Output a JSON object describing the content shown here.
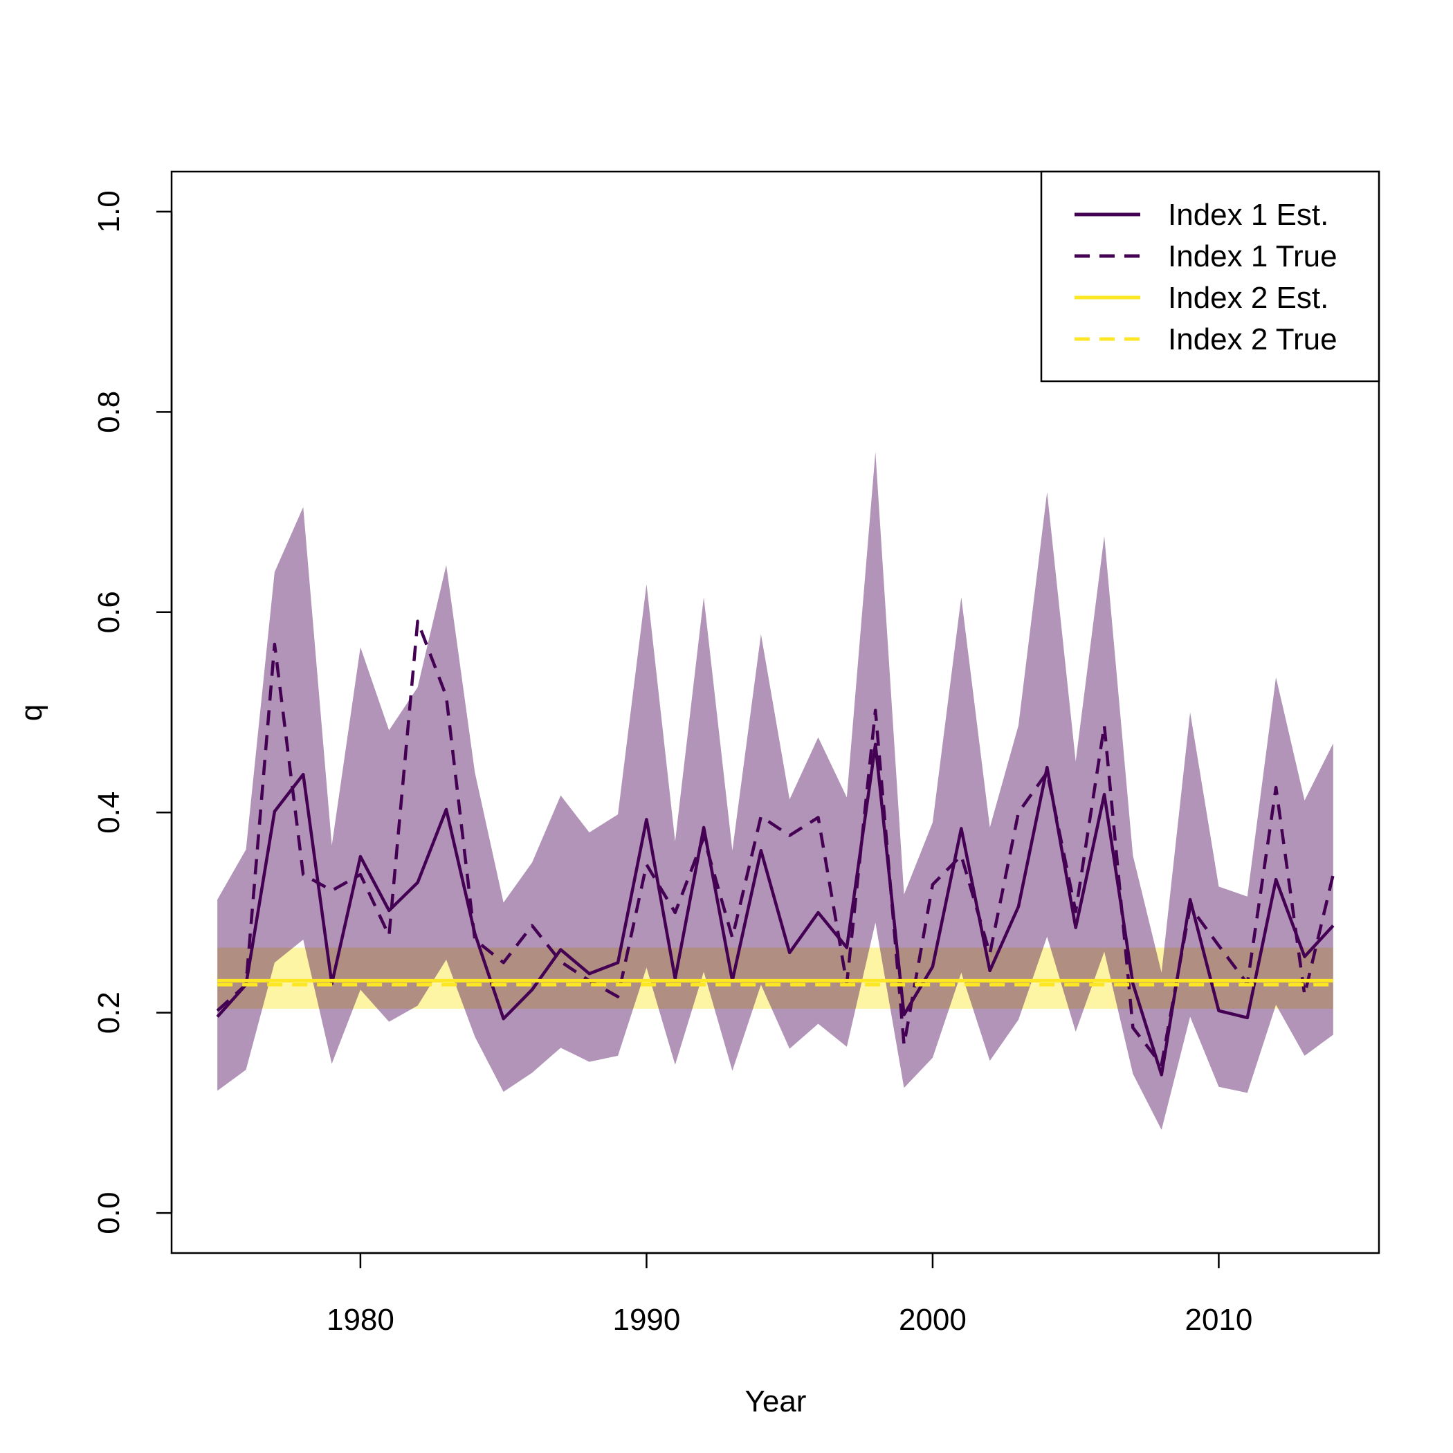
{
  "chart_data": {
    "type": "line",
    "xlabel": "Year",
    "ylabel": "q",
    "xlim": [
      1973.4,
      2015.6
    ],
    "ylim": [
      -0.04,
      1.04
    ],
    "x_ticks": [
      1980,
      1990,
      2000,
      2010
    ],
    "x_tick_labels": [
      "1980",
      "1990",
      "2000",
      "2010"
    ],
    "y_ticks": [
      0.0,
      0.2,
      0.4,
      0.6,
      0.8,
      1.0
    ],
    "y_tick_labels": [
      "0.0",
      "0.2",
      "0.4",
      "0.6",
      "0.8",
      "1.0"
    ],
    "legend_position": "top-right",
    "x": [
      1975,
      1976,
      1977,
      1978,
      1979,
      1980,
      1981,
      1982,
      1983,
      1984,
      1985,
      1986,
      1987,
      1988,
      1989,
      1990,
      1991,
      1992,
      1993,
      1994,
      1995,
      1996,
      1997,
      1998,
      1999,
      2000,
      2001,
      2002,
      2003,
      2004,
      2005,
      2006,
      2007,
      2008,
      2009,
      2010,
      2011,
      2012,
      2013,
      2014
    ],
    "series": [
      {
        "name": "Index 1 Est.",
        "color": "#440154",
        "dash": "solid",
        "values": [
          0.196,
          0.228,
          0.401,
          0.438,
          0.229,
          0.356,
          0.302,
          0.33,
          0.403,
          0.279,
          0.194,
          0.223,
          0.263,
          0.239,
          0.25,
          0.393,
          0.234,
          0.385,
          0.232,
          0.362,
          0.26,
          0.3,
          0.265,
          0.468,
          0.198,
          0.246,
          0.384,
          0.242,
          0.306,
          0.445,
          0.285,
          0.418,
          0.229,
          0.138,
          0.313,
          0.202,
          0.195,
          0.333,
          0.256,
          0.287
        ],
        "band_lower": [
          0.122,
          0.143,
          0.25,
          0.273,
          0.149,
          0.223,
          0.191,
          0.207,
          0.253,
          0.176,
          0.121,
          0.14,
          0.165,
          0.151,
          0.157,
          0.245,
          0.148,
          0.241,
          0.142,
          0.228,
          0.164,
          0.189,
          0.166,
          0.29,
          0.125,
          0.155,
          0.24,
          0.152,
          0.193,
          0.276,
          0.181,
          0.261,
          0.139,
          0.083,
          0.196,
          0.126,
          0.12,
          0.208,
          0.157,
          0.178
        ],
        "band_upper": [
          0.313,
          0.363,
          0.64,
          0.705,
          0.367,
          0.565,
          0.482,
          0.525,
          0.647,
          0.44,
          0.31,
          0.35,
          0.417,
          0.38,
          0.398,
          0.628,
          0.371,
          0.615,
          0.362,
          0.578,
          0.413,
          0.475,
          0.415,
          0.76,
          0.318,
          0.39,
          0.615,
          0.385,
          0.487,
          0.72,
          0.451,
          0.676,
          0.357,
          0.24,
          0.5,
          0.326,
          0.316,
          0.535,
          0.412,
          0.469
        ]
      },
      {
        "name": "Index 1 True",
        "color": "#440154",
        "dash": "dashed",
        "values": [
          0.202,
          0.228,
          0.568,
          0.338,
          0.322,
          0.338,
          0.277,
          0.591,
          0.516,
          0.273,
          0.25,
          0.287,
          0.251,
          0.232,
          0.216,
          0.348,
          0.3,
          0.375,
          0.275,
          0.396,
          0.377,
          0.395,
          0.229,
          0.502,
          0.168,
          0.328,
          0.357,
          0.259,
          0.4,
          0.44,
          0.301,
          0.487,
          0.185,
          0.148,
          0.306,
          0.267,
          0.229,
          0.425,
          0.218,
          0.338
        ]
      },
      {
        "name": "Index 2 Est.",
        "color": "#FDE725",
        "dash": "solid",
        "constant": 0.232,
        "band_lower": 0.204,
        "band_upper": 0.265
      },
      {
        "name": "Index 2 True",
        "color": "#FDE725",
        "dash": "dashed",
        "constant": 0.228
      }
    ],
    "band_colors": {
      "index1": "#440154",
      "index1_opacity": 0.42,
      "index2": "#FDE725",
      "index2_opacity": 0.42
    },
    "legend": [
      {
        "label": "Index 1 Est.",
        "color": "#440154",
        "dash": "solid"
      },
      {
        "label": "Index 1 True",
        "color": "#440154",
        "dash": "dashed"
      },
      {
        "label": "Index 2 Est.",
        "color": "#FDE725",
        "dash": "solid"
      },
      {
        "label": "Index 2 True",
        "color": "#FDE725",
        "dash": "dashed"
      }
    ]
  }
}
